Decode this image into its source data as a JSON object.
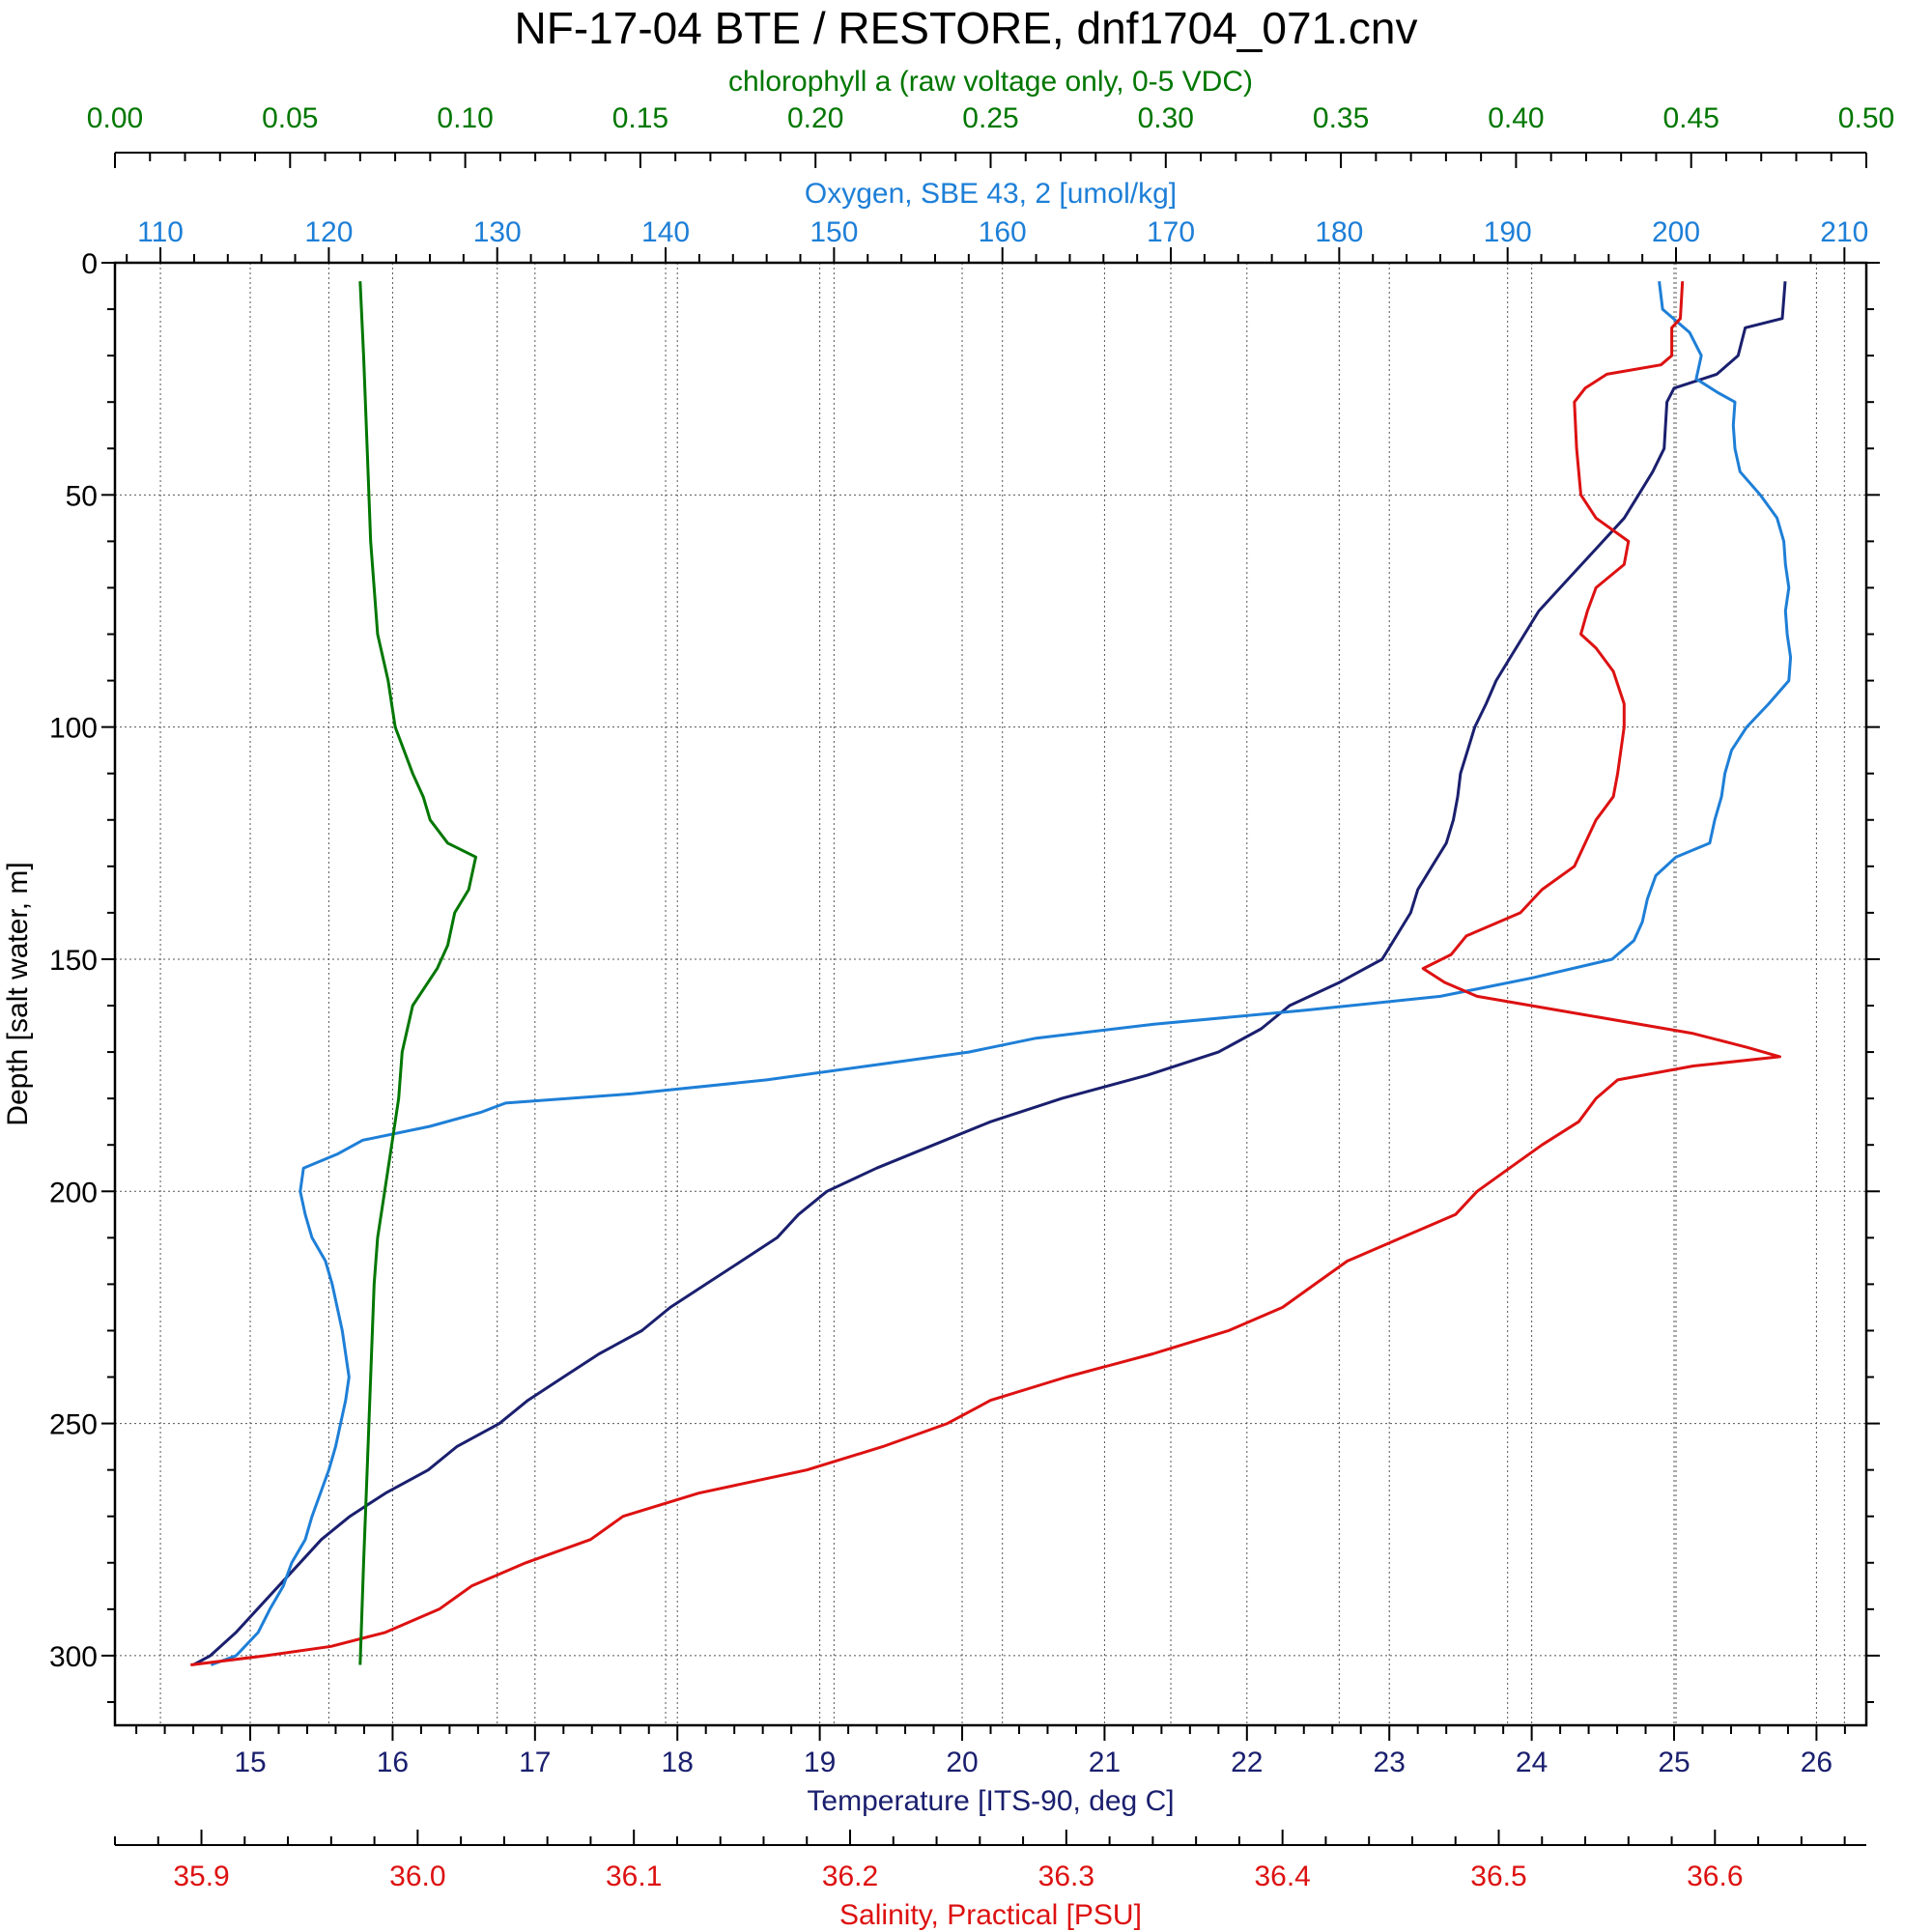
{
  "title": "NF-17-04 BTE / RESTORE, dnf1704_071.cnv",
  "chart_data": {
    "type": "line",
    "title": "NF-17-04 BTE / RESTORE, dnf1704_071.cnv",
    "y_axis": {
      "label": "Depth [salt water, m]",
      "range": [
        0,
        315
      ],
      "inverted": true,
      "ticks": [
        0,
        50,
        100,
        150,
        200,
        250,
        300
      ],
      "minor_step": 10,
      "grid": true
    },
    "axes": [
      {
        "id": "chl",
        "label": "chlorophyll a (raw voltage only, 0-5 VDC)",
        "position": "top-outer",
        "color": "#007700",
        "range": [
          0,
          0.5
        ],
        "ticks": [
          0,
          0.05,
          0.1,
          0.15,
          0.2,
          0.25,
          0.3,
          0.35,
          0.4,
          0.45,
          0.5
        ],
        "tick_labels": [
          "0.00",
          "0.05",
          "0.10",
          "0.15",
          "0.20",
          "0.25",
          "0.30",
          "0.35",
          "0.40",
          "0.45",
          "0.50"
        ],
        "minor_step": 0.01
      },
      {
        "id": "oxy",
        "label": "Oxygen, SBE 43, 2 [umol/kg]",
        "position": "top",
        "color": "#1e7fd7",
        "range": [
          107.3,
          211.3
        ],
        "ticks": [
          110,
          120,
          130,
          140,
          150,
          160,
          170,
          180,
          190,
          200,
          210
        ],
        "tick_labels": [
          "110",
          "120",
          "130",
          "140",
          "150",
          "160",
          "170",
          "180",
          "190",
          "200",
          "210"
        ],
        "minor_step": 2,
        "grid": true
      },
      {
        "id": "temp",
        "label": "Temperature [ITS-90, deg C]",
        "position": "bottom",
        "color": "#1a1f6e",
        "range": [
          14.05,
          26.35
        ],
        "ticks": [
          15,
          16,
          17,
          18,
          19,
          20,
          21,
          22,
          23,
          24,
          25,
          26
        ],
        "tick_labels": [
          "15",
          "16",
          "17",
          "18",
          "19",
          "20",
          "21",
          "22",
          "23",
          "24",
          "25",
          "26"
        ],
        "minor_step": 0.2,
        "grid": true
      },
      {
        "id": "sal",
        "label": "Salinity, Practical [PSU]",
        "position": "bottom-outer",
        "color": "#dd1111",
        "range": [
          35.86,
          36.67
        ],
        "ticks": [
          35.9,
          36.0,
          36.1,
          36.2,
          36.3,
          36.4,
          36.5,
          36.6
        ],
        "tick_labels": [
          "35.9",
          "36.0",
          "36.1",
          "36.2",
          "36.3",
          "36.4",
          "36.5",
          "36.6"
        ],
        "minor_step": 0.02
      }
    ],
    "series": [
      {
        "name": "Temperature",
        "axis": "temp",
        "color": "#1a1f6e",
        "points": [
          [
            4,
            25.78
          ],
          [
            12,
            25.76
          ],
          [
            14,
            25.5
          ],
          [
            20,
            25.45
          ],
          [
            24,
            25.3
          ],
          [
            27,
            25.0
          ],
          [
            30,
            24.95
          ],
          [
            40,
            24.93
          ],
          [
            45,
            24.85
          ],
          [
            50,
            24.75
          ],
          [
            55,
            24.65
          ],
          [
            60,
            24.5
          ],
          [
            65,
            24.35
          ],
          [
            70,
            24.2
          ],
          [
            75,
            24.05
          ],
          [
            80,
            23.95
          ],
          [
            85,
            23.85
          ],
          [
            90,
            23.75
          ],
          [
            95,
            23.68
          ],
          [
            100,
            23.6
          ],
          [
            105,
            23.55
          ],
          [
            110,
            23.5
          ],
          [
            115,
            23.48
          ],
          [
            120,
            23.45
          ],
          [
            125,
            23.4
          ],
          [
            130,
            23.3
          ],
          [
            135,
            23.2
          ],
          [
            140,
            23.15
          ],
          [
            145,
            23.05
          ],
          [
            150,
            22.95
          ],
          [
            155,
            22.65
          ],
          [
            160,
            22.3
          ],
          [
            165,
            22.1
          ],
          [
            170,
            21.8
          ],
          [
            175,
            21.3
          ],
          [
            180,
            20.7
          ],
          [
            185,
            20.2
          ],
          [
            190,
            19.8
          ],
          [
            195,
            19.4
          ],
          [
            200,
            19.05
          ],
          [
            205,
            18.85
          ],
          [
            210,
            18.7
          ],
          [
            215,
            18.45
          ],
          [
            220,
            18.2
          ],
          [
            225,
            17.95
          ],
          [
            230,
            17.75
          ],
          [
            235,
            17.45
          ],
          [
            240,
            17.2
          ],
          [
            245,
            16.95
          ],
          [
            250,
            16.75
          ],
          [
            255,
            16.45
          ],
          [
            260,
            16.25
          ],
          [
            265,
            15.95
          ],
          [
            270,
            15.7
          ],
          [
            275,
            15.5
          ],
          [
            280,
            15.35
          ],
          [
            285,
            15.2
          ],
          [
            290,
            15.05
          ],
          [
            295,
            14.9
          ],
          [
            300,
            14.72
          ],
          [
            302,
            14.6
          ]
        ]
      },
      {
        "name": "Oxygen",
        "axis": "oxy",
        "color": "#1e7fd7",
        "points": [
          [
            4,
            199.0
          ],
          [
            10,
            199.2
          ],
          [
            15,
            200.8
          ],
          [
            20,
            201.5
          ],
          [
            25,
            201.2
          ],
          [
            28,
            202.5
          ],
          [
            30,
            203.5
          ],
          [
            35,
            203.4
          ],
          [
            40,
            203.5
          ],
          [
            45,
            203.8
          ],
          [
            50,
            205.0
          ],
          [
            55,
            206.0
          ],
          [
            60,
            206.4
          ],
          [
            65,
            206.5
          ],
          [
            70,
            206.7
          ],
          [
            75,
            206.5
          ],
          [
            80,
            206.6
          ],
          [
            85,
            206.8
          ],
          [
            90,
            206.7
          ],
          [
            95,
            205.5
          ],
          [
            100,
            204.2
          ],
          [
            105,
            203.3
          ],
          [
            110,
            202.9
          ],
          [
            115,
            202.7
          ],
          [
            120,
            202.3
          ],
          [
            125,
            202.0
          ],
          [
            128,
            200.0
          ],
          [
            132,
            198.8
          ],
          [
            137,
            198.3
          ],
          [
            142,
            198.0
          ],
          [
            146,
            197.5
          ],
          [
            150,
            196.2
          ],
          [
            154,
            191.5
          ],
          [
            158,
            186.0
          ],
          [
            161,
            178.0
          ],
          [
            164,
            169.0
          ],
          [
            167,
            162.0
          ],
          [
            170,
            158.0
          ],
          [
            173,
            152.0
          ],
          [
            176,
            146.0
          ],
          [
            179,
            138.0
          ],
          [
            181,
            130.5
          ],
          [
            183,
            129.0
          ],
          [
            186,
            126.0
          ],
          [
            189,
            122.0
          ],
          [
            192,
            120.5
          ],
          [
            195,
            118.5
          ],
          [
            200,
            118.3
          ],
          [
            205,
            118.6
          ],
          [
            210,
            119.0
          ],
          [
            215,
            119.8
          ],
          [
            220,
            120.2
          ],
          [
            225,
            120.5
          ],
          [
            230,
            120.8
          ],
          [
            235,
            121.0
          ],
          [
            240,
            121.2
          ],
          [
            245,
            121.0
          ],
          [
            250,
            120.7
          ],
          [
            255,
            120.4
          ],
          [
            260,
            120.0
          ],
          [
            265,
            119.5
          ],
          [
            270,
            119.0
          ],
          [
            275,
            118.6
          ],
          [
            280,
            117.8
          ],
          [
            285,
            117.3
          ],
          [
            290,
            116.5
          ],
          [
            295,
            115.8
          ],
          [
            300,
            114.5
          ],
          [
            302,
            113.0
          ]
        ]
      },
      {
        "name": "Salinity",
        "axis": "sal",
        "color": "#dd1111",
        "points": [
          [
            4,
            36.585
          ],
          [
            12,
            36.584
          ],
          [
            14,
            36.58
          ],
          [
            20,
            36.58
          ],
          [
            22,
            36.575
          ],
          [
            24,
            36.55
          ],
          [
            27,
            36.54
          ],
          [
            30,
            36.535
          ],
          [
            40,
            36.536
          ],
          [
            50,
            36.538
          ],
          [
            55,
            36.545
          ],
          [
            60,
            36.56
          ],
          [
            65,
            36.558
          ],
          [
            70,
            36.545
          ],
          [
            75,
            36.541
          ],
          [
            80,
            36.538
          ],
          [
            83,
            36.545
          ],
          [
            88,
            36.553
          ],
          [
            95,
            36.558
          ],
          [
            100,
            36.558
          ],
          [
            110,
            36.555
          ],
          [
            115,
            36.553
          ],
          [
            120,
            36.545
          ],
          [
            125,
            36.54
          ],
          [
            130,
            36.535
          ],
          [
            135,
            36.52
          ],
          [
            140,
            36.51
          ],
          [
            145,
            36.485
          ],
          [
            149,
            36.478
          ],
          [
            152,
            36.465
          ],
          [
            155,
            36.475
          ],
          [
            158,
            36.49
          ],
          [
            162,
            36.54
          ],
          [
            166,
            36.59
          ],
          [
            169,
            36.615
          ],
          [
            171,
            36.63
          ],
          [
            173,
            36.59
          ],
          [
            176,
            36.555
          ],
          [
            180,
            36.545
          ],
          [
            185,
            36.537
          ],
          [
            190,
            36.52
          ],
          [
            195,
            36.505
          ],
          [
            200,
            36.49
          ],
          [
            205,
            36.48
          ],
          [
            210,
            36.455
          ],
          [
            215,
            36.43
          ],
          [
            220,
            36.415
          ],
          [
            225,
            36.4
          ],
          [
            230,
            36.375
          ],
          [
            235,
            36.34
          ],
          [
            240,
            36.3
          ],
          [
            245,
            36.265
          ],
          [
            250,
            36.245
          ],
          [
            255,
            36.215
          ],
          [
            260,
            36.18
          ],
          [
            265,
            36.13
          ],
          [
            270,
            36.095
          ],
          [
            275,
            36.08
          ],
          [
            280,
            36.05
          ],
          [
            285,
            36.025
          ],
          [
            290,
            36.01
          ],
          [
            295,
            35.985
          ],
          [
            298,
            35.96
          ],
          [
            300,
            35.93
          ],
          [
            302,
            35.895
          ]
        ]
      },
      {
        "name": "Chlorophyll a",
        "axis": "chl",
        "color": "#007700",
        "points": [
          [
            4,
            0.07
          ],
          [
            20,
            0.071
          ],
          [
            40,
            0.072
          ],
          [
            60,
            0.073
          ],
          [
            80,
            0.075
          ],
          [
            90,
            0.078
          ],
          [
            100,
            0.08
          ],
          [
            110,
            0.085
          ],
          [
            115,
            0.088
          ],
          [
            120,
            0.09
          ],
          [
            125,
            0.095
          ],
          [
            128,
            0.103
          ],
          [
            135,
            0.101
          ],
          [
            140,
            0.097
          ],
          [
            147,
            0.095
          ],
          [
            152,
            0.092
          ],
          [
            160,
            0.085
          ],
          [
            170,
            0.082
          ],
          [
            180,
            0.081
          ],
          [
            185,
            0.08
          ],
          [
            190,
            0.079
          ],
          [
            200,
            0.077
          ],
          [
            210,
            0.075
          ],
          [
            220,
            0.074
          ],
          [
            240,
            0.073
          ],
          [
            260,
            0.072
          ],
          [
            280,
            0.071
          ],
          [
            302,
            0.07
          ]
        ]
      }
    ]
  }
}
